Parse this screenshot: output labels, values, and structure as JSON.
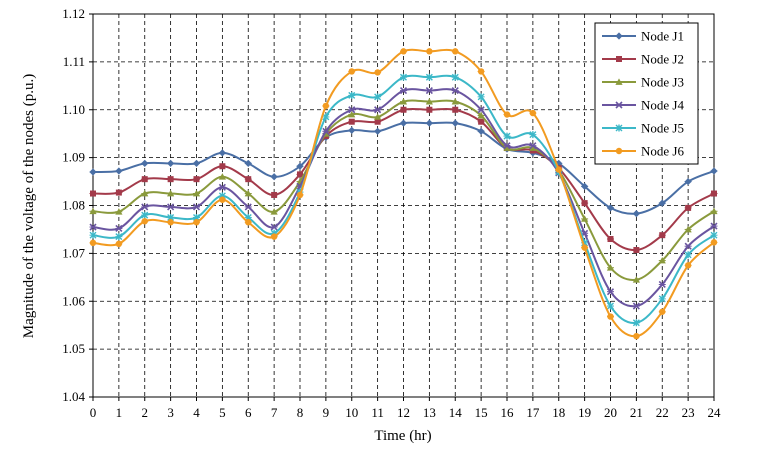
{
  "chart_data": {
    "type": "line",
    "xlabel": "Time (hr)",
    "ylabel": "Magnitude of the voltage of the nodes (p.u.)",
    "xlim": [
      0,
      24
    ],
    "ylim": [
      1.04,
      1.12
    ],
    "x_ticks": [
      "0",
      "1",
      "2",
      "3",
      "4",
      "5",
      "6",
      "7",
      "8",
      "9",
      "10",
      "11",
      "12",
      "13",
      "14",
      "15",
      "16",
      "17",
      "18",
      "19",
      "20",
      "21",
      "22",
      "23",
      "24"
    ],
    "y_ticks": [
      "1.04",
      "1.05",
      "1.06",
      "1.07",
      "1.08",
      "1.09",
      "1.10",
      "1.11",
      "1.12"
    ],
    "grid": true,
    "legend_position": "top-right",
    "x": [
      0,
      1,
      2,
      3,
      4,
      5,
      6,
      7,
      8,
      9,
      10,
      11,
      12,
      13,
      14,
      15,
      16,
      17,
      18,
      19,
      20,
      21,
      22,
      23,
      24
    ],
    "series": [
      {
        "name": "Node J1",
        "color": "#4a6fa5",
        "marker": "diamond",
        "values": [
          1.087,
          1.0872,
          1.0888,
          1.0888,
          1.0888,
          1.091,
          1.0888,
          1.086,
          1.0882,
          1.0942,
          1.0957,
          1.0955,
          1.0972,
          1.0972,
          1.0972,
          1.0955,
          1.0918,
          1.091,
          1.0888,
          1.084,
          1.0795,
          1.0783,
          1.0805,
          1.085,
          1.0872
        ]
      },
      {
        "name": "Node J2",
        "color": "#a33a4a",
        "marker": "square",
        "values": [
          1.0825,
          1.0827,
          1.0855,
          1.0855,
          1.0855,
          1.0882,
          1.0855,
          1.0822,
          1.0865,
          1.0945,
          1.0975,
          1.0975,
          1.1,
          1.1,
          1.1,
          1.0975,
          1.092,
          1.0915,
          1.0878,
          1.0805,
          1.073,
          1.0707,
          1.0738,
          1.0795,
          1.0825
        ]
      },
      {
        "name": "Node J3",
        "color": "#8a9a3c",
        "marker": "triangle",
        "values": [
          1.0788,
          1.0787,
          1.0825,
          1.0825,
          1.0825,
          1.086,
          1.0825,
          1.0787,
          1.085,
          1.095,
          1.099,
          1.0985,
          1.1017,
          1.1017,
          1.1017,
          1.0988,
          1.092,
          1.092,
          1.0873,
          1.0772,
          1.067,
          1.0645,
          1.0685,
          1.075,
          1.0788
        ]
      },
      {
        "name": "Node J4",
        "color": "#6a55a0",
        "marker": "x",
        "values": [
          1.0755,
          1.0752,
          1.0797,
          1.0797,
          1.0797,
          1.0838,
          1.0797,
          1.0755,
          1.084,
          1.0955,
          1.1,
          1.1,
          1.104,
          1.104,
          1.104,
          1.1,
          1.0925,
          1.0925,
          1.0868,
          1.0742,
          1.062,
          1.059,
          1.0635,
          1.0715,
          1.0757
        ]
      },
      {
        "name": "Node J5",
        "color": "#3cb8c8",
        "marker": "asterisk",
        "values": [
          1.0738,
          1.0735,
          1.078,
          1.0775,
          1.0775,
          1.082,
          1.0775,
          1.0742,
          1.0828,
          1.0985,
          1.103,
          1.1027,
          1.1068,
          1.1068,
          1.1068,
          1.1027,
          1.0945,
          1.0948,
          1.087,
          1.0722,
          1.059,
          1.0555,
          1.0605,
          1.0697,
          1.0738
        ]
      },
      {
        "name": "Node J6",
        "color": "#f29b21",
        "marker": "circle",
        "values": [
          1.0722,
          1.072,
          1.0767,
          1.0765,
          1.0765,
          1.0812,
          1.0765,
          1.0735,
          1.0822,
          1.1008,
          1.108,
          1.1078,
          1.1122,
          1.1122,
          1.1122,
          1.108,
          1.099,
          1.0993,
          1.0875,
          1.0712,
          1.0568,
          1.0527,
          1.0578,
          1.0675,
          1.0723
        ]
      }
    ]
  }
}
